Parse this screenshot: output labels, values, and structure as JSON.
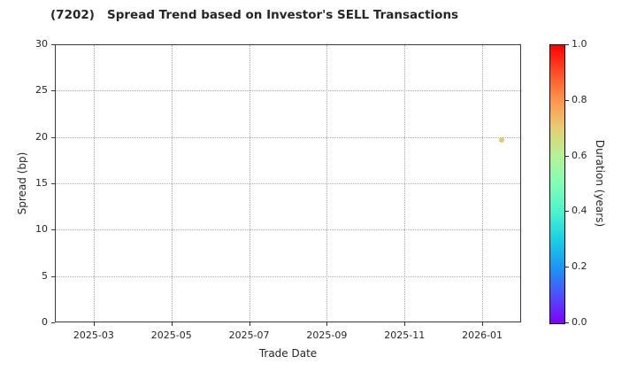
{
  "title": "(7202)   Spread Trend based on Investor's SELL Transactions",
  "chart_data": {
    "type": "scatter",
    "title": "(7202)   Spread Trend based on Investor's SELL Transactions",
    "xlabel": "Trade Date",
    "ylabel": "Spread (bp)",
    "x_domain": [
      "2025-02-01",
      "2026-02-01"
    ],
    "xticks": [
      {
        "label": "2025-03",
        "date": "2025-03-01"
      },
      {
        "label": "2025-05",
        "date": "2025-05-01"
      },
      {
        "label": "2025-07",
        "date": "2025-07-01"
      },
      {
        "label": "2025-09",
        "date": "2025-09-01"
      },
      {
        "label": "2025-11",
        "date": "2025-11-01"
      },
      {
        "label": "2026-01",
        "date": "2026-01-01"
      }
    ],
    "ylim": [
      0,
      30
    ],
    "yticks": [
      0,
      5,
      10,
      15,
      20,
      25,
      30
    ],
    "grid": true,
    "points": [
      {
        "trade_date": "2026-01-16",
        "spread_bp": 19.7,
        "duration_years": 0.7,
        "color": "#e6c76a"
      }
    ],
    "colorbar": {
      "label": "Duration (years)",
      "colormap": "rainbow",
      "range": [
        0.0,
        1.0
      ],
      "ticks": [
        "0.0",
        "0.2",
        "0.4",
        "0.6",
        "0.8",
        "1.0"
      ],
      "gradient_stops": [
        {
          "t": 0.0,
          "color": "#8000ff"
        },
        {
          "t": 0.1,
          "color": "#4d4ffc"
        },
        {
          "t": 0.2,
          "color": "#1a96f3"
        },
        {
          "t": 0.3,
          "color": "#1acee3"
        },
        {
          "t": 0.4,
          "color": "#4df3ce"
        },
        {
          "t": 0.5,
          "color": "#80ffb5"
        },
        {
          "t": 0.6,
          "color": "#b3f396"
        },
        {
          "t": 0.7,
          "color": "#e6ce74"
        },
        {
          "t": 0.8,
          "color": "#ff964f"
        },
        {
          "t": 0.9,
          "color": "#ff4f28"
        },
        {
          "t": 1.0,
          "color": "#ff0000"
        }
      ]
    }
  },
  "colors": {
    "background": "#ffffff",
    "spine": "#3a3a3a",
    "grid": "#ababab",
    "tick_label": "#262626",
    "title": "#262626"
  }
}
